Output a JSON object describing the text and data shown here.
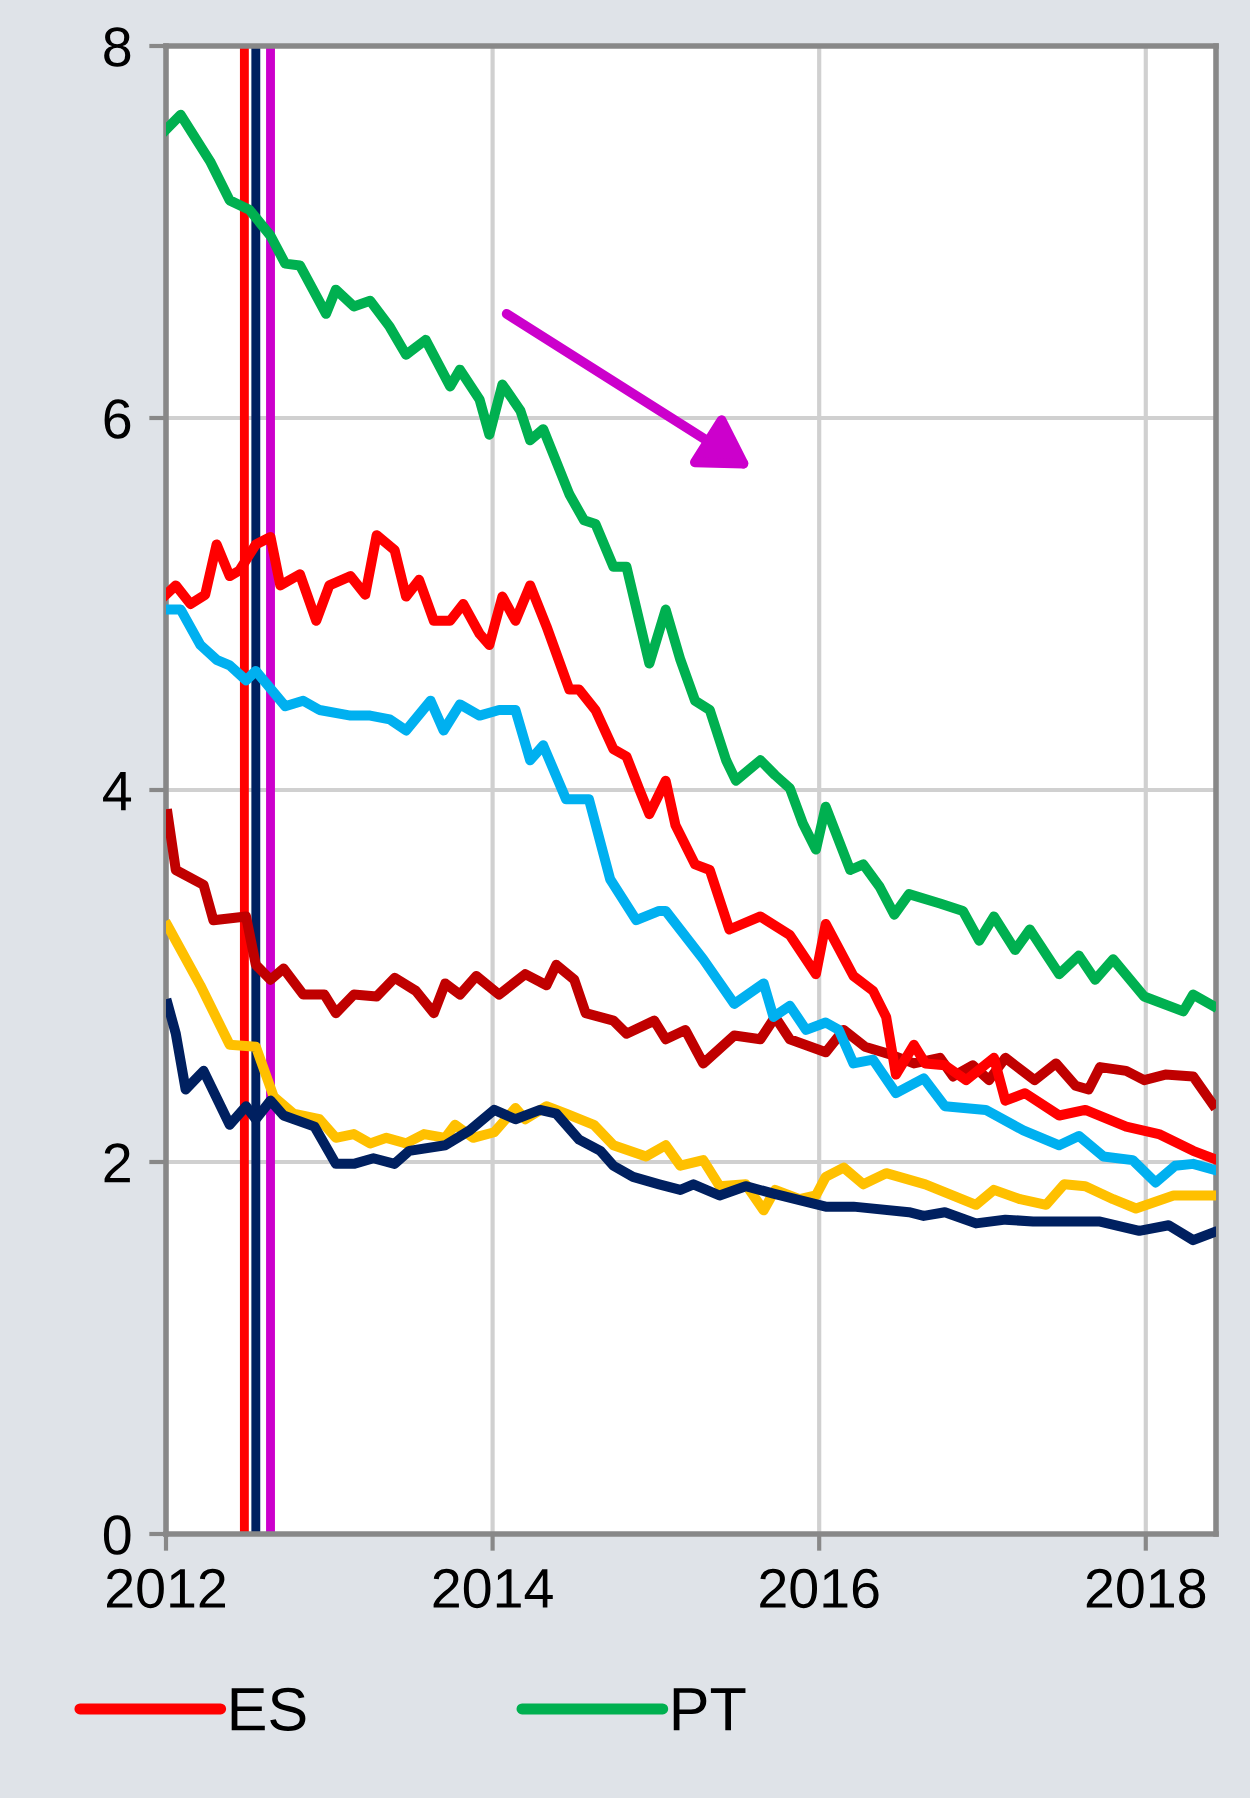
{
  "chart_data": {
    "type": "line",
    "xlim": [
      2012,
      2018.43
    ],
    "xticks": [
      2012,
      2014,
      2016,
      2018
    ],
    "ylim": [
      0,
      8
    ],
    "yticks": [
      0,
      2,
      4,
      6,
      8
    ],
    "grid": true,
    "legend": "bottom",
    "line_style": "solid",
    "marker": "none",
    "ref_lines": [
      {
        "axis": "x",
        "value": 2012.48,
        "color": "#ff0000"
      },
      {
        "axis": "x",
        "value": 2012.55,
        "color": "#002060"
      },
      {
        "axis": "x",
        "value": 2012.64,
        "color": "#cc00cc"
      }
    ],
    "series": [
      {
        "color": "#c00000",
        "x": [
          2012.01,
          2012.06,
          2012.23,
          2012.29,
          2012.49,
          2012.55,
          2012.64,
          2012.72,
          2012.84,
          2012.97,
          2013.04,
          2013.15,
          2013.29,
          2013.4,
          2013.53,
          2013.64,
          2013.71,
          2013.8,
          2013.9,
          2014.04,
          2014.2,
          2014.33,
          2014.39,
          2014.5,
          2014.57,
          2014.74,
          2014.82,
          2014.99,
          2015.06,
          2015.18,
          2015.29,
          2015.48,
          2015.64,
          2015.73,
          2015.82,
          2016.04,
          2016.15,
          2016.28,
          2016.43,
          2016.58,
          2016.74,
          2016.82,
          2016.94,
          2017.04,
          2017.14,
          2017.32,
          2017.45,
          2017.57,
          2017.65,
          2017.72,
          2017.88,
          2017.99,
          2018.12,
          2018.29,
          2018.41
        ],
        "values": [
          3.87,
          3.57,
          3.49,
          3.3,
          3.32,
          3.06,
          2.98,
          3.04,
          2.9,
          2.9,
          2.8,
          2.9,
          2.89,
          2.99,
          2.92,
          2.8,
          2.96,
          2.9,
          3.0,
          2.9,
          3.01,
          2.95,
          3.06,
          2.98,
          2.8,
          2.76,
          2.69,
          2.76,
          2.66,
          2.71,
          2.53,
          2.68,
          2.66,
          2.78,
          2.66,
          2.59,
          2.71,
          2.62,
          2.58,
          2.53,
          2.56,
          2.46,
          2.52,
          2.44,
          2.56,
          2.44,
          2.53,
          2.41,
          2.39,
          2.51,
          2.49,
          2.44,
          2.47,
          2.46,
          2.31
        ]
      },
      {
        "color": "#00b0f0",
        "x": [
          2012.01,
          2012.09,
          2012.21,
          2012.31,
          2012.39,
          2012.49,
          2012.55,
          2012.73,
          2012.84,
          2012.94,
          2013.13,
          2013.25,
          2013.37,
          2013.47,
          2013.62,
          2013.7,
          2013.8,
          2013.92,
          2014.04,
          2014.14,
          2014.23,
          2014.31,
          2014.45,
          2014.59,
          2014.72,
          2014.88,
          2015.02,
          2015.06,
          2015.29,
          2015.48,
          2015.66,
          2015.72,
          2015.82,
          2015.92,
          2016.04,
          2016.12,
          2016.21,
          2016.33,
          2016.47,
          2016.64,
          2016.77,
          2017.02,
          2017.25,
          2017.47,
          2017.59,
          2017.74,
          2017.92,
          2018.06,
          2018.18,
          2018.29,
          2018.41
        ],
        "values": [
          4.97,
          4.97,
          4.78,
          4.7,
          4.67,
          4.59,
          4.64,
          4.45,
          4.48,
          4.43,
          4.4,
          4.4,
          4.38,
          4.32,
          4.48,
          4.32,
          4.46,
          4.4,
          4.43,
          4.43,
          4.16,
          4.24,
          3.95,
          3.95,
          3.52,
          3.3,
          3.35,
          3.35,
          3.09,
          2.85,
          2.96,
          2.78,
          2.84,
          2.71,
          2.75,
          2.71,
          2.53,
          2.55,
          2.37,
          2.45,
          2.3,
          2.28,
          2.17,
          2.09,
          2.14,
          2.03,
          2.01,
          1.89,
          1.98,
          1.99,
          1.96
        ]
      },
      {
        "color": "#ffc000",
        "x": [
          2012.01,
          2012.21,
          2012.39,
          2012.55,
          2012.66,
          2012.78,
          2012.94,
          2013.04,
          2013.15,
          2013.25,
          2013.35,
          2013.47,
          2013.58,
          2013.71,
          2013.77,
          2013.88,
          2014.01,
          2014.14,
          2014.2,
          2014.33,
          2014.45,
          2014.62,
          2014.74,
          2014.94,
          2015.06,
          2015.15,
          2015.29,
          2015.39,
          2015.55,
          2015.66,
          2015.73,
          2015.88,
          2015.98,
          2016.04,
          2016.15,
          2016.27,
          2016.41,
          2016.65,
          2016.96,
          2017.07,
          2017.23,
          2017.39,
          2017.5,
          2017.63,
          2017.8,
          2017.94,
          2018.17,
          2018.41
        ],
        "values": [
          3.27,
          2.95,
          2.63,
          2.62,
          2.35,
          2.26,
          2.23,
          2.13,
          2.15,
          2.1,
          2.13,
          2.1,
          2.15,
          2.13,
          2.2,
          2.13,
          2.16,
          2.29,
          2.23,
          2.3,
          2.26,
          2.2,
          2.09,
          2.03,
          2.09,
          1.98,
          2.01,
          1.87,
          1.88,
          1.74,
          1.85,
          1.8,
          1.82,
          1.92,
          1.97,
          1.88,
          1.94,
          1.88,
          1.77,
          1.85,
          1.8,
          1.77,
          1.88,
          1.87,
          1.8,
          1.75,
          1.82,
          1.82
        ]
      },
      {
        "color": "#002060",
        "x": [
          2012.01,
          2012.06,
          2012.12,
          2012.23,
          2012.39,
          2012.49,
          2012.55,
          2012.64,
          2012.72,
          2012.91,
          2013.04,
          2013.15,
          2013.27,
          2013.4,
          2013.49,
          2013.71,
          2013.86,
          2014.01,
          2014.14,
          2014.29,
          2014.39,
          2014.53,
          2014.66,
          2014.74,
          2014.86,
          2015.02,
          2015.15,
          2015.23,
          2015.39,
          2015.55,
          2015.72,
          2016.04,
          2016.21,
          2016.55,
          2016.64,
          2016.77,
          2016.96,
          2017.14,
          2017.31,
          2017.72,
          2017.96,
          2018.14,
          2018.29,
          2018.41
        ],
        "values": [
          2.85,
          2.69,
          2.39,
          2.49,
          2.2,
          2.3,
          2.23,
          2.33,
          2.25,
          2.19,
          1.99,
          1.99,
          2.02,
          1.99,
          2.06,
          2.09,
          2.17,
          2.28,
          2.23,
          2.28,
          2.26,
          2.12,
          2.06,
          1.98,
          1.92,
          1.88,
          1.85,
          1.88,
          1.82,
          1.87,
          1.83,
          1.76,
          1.76,
          1.73,
          1.71,
          1.73,
          1.67,
          1.69,
          1.68,
          1.68,
          1.63,
          1.66,
          1.58,
          1.62
        ]
      },
      {
        "name": "ES",
        "color": "#ff0000",
        "x": [
          2012.0,
          2012.06,
          2012.15,
          2012.24,
          2012.31,
          2012.39,
          2012.45,
          2012.55,
          2012.64,
          2012.7,
          2012.82,
          2012.92,
          2013.0,
          2013.13,
          2013.22,
          2013.29,
          2013.4,
          2013.47,
          2013.55,
          2013.64,
          2013.74,
          2013.82,
          2013.92,
          2013.98,
          2014.06,
          2014.14,
          2014.23,
          2014.33,
          2014.47,
          2014.53,
          2014.63,
          2014.74,
          2014.82,
          2014.9,
          2014.96,
          2015.06,
          2015.12,
          2015.24,
          2015.33,
          2015.45,
          2015.64,
          2015.82,
          2015.98,
          2016.04,
          2016.21,
          2016.33,
          2016.41,
          2016.47,
          2016.58,
          2016.65,
          2016.77,
          2016.9,
          2017.07,
          2017.14,
          2017.26,
          2017.47,
          2017.63,
          2017.88,
          2018.08,
          2018.29,
          2018.41
        ],
        "values": [
          5.05,
          5.1,
          5.0,
          5.05,
          5.32,
          5.15,
          5.18,
          5.32,
          5.36,
          5.1,
          5.16,
          4.91,
          5.1,
          5.15,
          5.05,
          5.37,
          5.29,
          5.04,
          5.13,
          4.91,
          4.91,
          5.0,
          4.84,
          4.78,
          5.04,
          4.91,
          5.1,
          4.88,
          4.54,
          4.54,
          4.43,
          4.22,
          4.18,
          4.0,
          3.87,
          4.05,
          3.81,
          3.6,
          3.57,
          3.25,
          3.32,
          3.22,
          3.01,
          3.28,
          3.0,
          2.92,
          2.78,
          2.47,
          2.63,
          2.53,
          2.52,
          2.44,
          2.56,
          2.33,
          2.37,
          2.25,
          2.28,
          2.19,
          2.15,
          2.06,
          2.02
        ]
      },
      {
        "name": "PT",
        "color": "#00b050",
        "x": [
          2012.0,
          2012.09,
          2012.27,
          2012.39,
          2012.51,
          2012.64,
          2012.73,
          2012.82,
          2012.98,
          2013.04,
          2013.15,
          2013.25,
          2013.37,
          2013.47,
          2013.59,
          2013.74,
          2013.8,
          2013.92,
          2013.98,
          2014.06,
          2014.17,
          2014.23,
          2014.31,
          2014.47,
          2014.56,
          2014.63,
          2014.74,
          2014.82,
          2014.96,
          2015.06,
          2015.15,
          2015.24,
          2015.33,
          2015.43,
          2015.49,
          2015.64,
          2015.73,
          2015.82,
          2015.9,
          2015.98,
          2016.04,
          2016.19,
          2016.27,
          2016.37,
          2016.46,
          2016.55,
          2016.74,
          2016.88,
          2016.98,
          2017.07,
          2017.2,
          2017.29,
          2017.47,
          2017.59,
          2017.69,
          2017.8,
          2017.99,
          2018.23,
          2018.29,
          2018.41
        ],
        "values": [
          7.55,
          7.63,
          7.38,
          7.17,
          7.12,
          6.98,
          6.83,
          6.82,
          6.56,
          6.69,
          6.6,
          6.63,
          6.49,
          6.34,
          6.42,
          6.17,
          6.26,
          6.1,
          5.91,
          6.18,
          6.04,
          5.88,
          5.94,
          5.59,
          5.45,
          5.43,
          5.2,
          5.2,
          4.68,
          4.97,
          4.7,
          4.48,
          4.43,
          4.16,
          4.05,
          4.16,
          4.08,
          4.01,
          3.82,
          3.68,
          3.91,
          3.57,
          3.6,
          3.48,
          3.33,
          3.44,
          3.39,
          3.35,
          3.19,
          3.32,
          3.14,
          3.25,
          3.01,
          3.11,
          2.98,
          3.09,
          2.89,
          2.81,
          2.9,
          2.84
        ]
      }
    ]
  }
}
